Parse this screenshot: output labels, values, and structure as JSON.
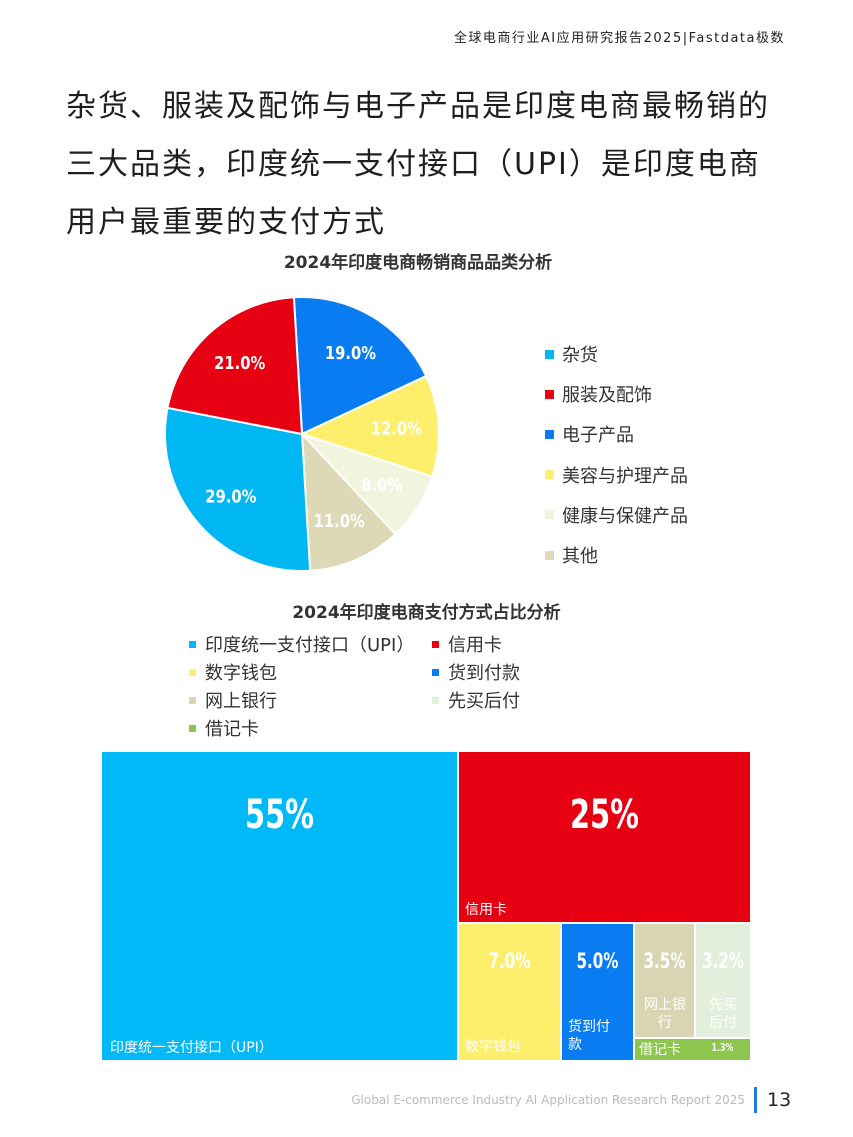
{
  "header": {
    "report_title": "全球电商行业AI应用研究报告2025|Fastdata极数"
  },
  "headline": {
    "lines": [
      "杂货、服装及配饰与电子产品是印度电商最畅销的",
      "三大品类，印度统一支付接口（UPI）是印度电商",
      "用户最重要的支付方式"
    ]
  },
  "chart_data": [
    {
      "type": "pie",
      "title": "2024年印度电商畅销商品品类分析",
      "legend_position": "right",
      "categories": [
        "杂货",
        "服装及配饰",
        "电子产品",
        "美容与护理产品",
        "健康与保健产品",
        "其他"
      ],
      "values": [
        29.0,
        21.0,
        19.0,
        12.0,
        8.0,
        11.0
      ],
      "data_labels": [
        "29.0%",
        "21.0%",
        "19.0%",
        "12.0%",
        "8.0%",
        "11.0%"
      ],
      "colors": [
        "#00b7f4",
        "#e60012",
        "#0a7cf1",
        "#fdee6c",
        "#f1f5dd",
        "#ddd8b5"
      ]
    },
    {
      "type": "treemap",
      "title": "2024年印度电商支付方式占比分析",
      "legend_position": "top",
      "categories": [
        "印度统一支付接口（UPI）",
        "信用卡",
        "数字钱包",
        "货到付款",
        "网上银行",
        "先买后付",
        "借记卡"
      ],
      "values": [
        55,
        25,
        7.0,
        5.0,
        3.5,
        3.2,
        1.3
      ],
      "data_labels": [
        "55%",
        "25%",
        "7.0%",
        "5.0%",
        "3.5%",
        "3.2%",
        "1.3%"
      ],
      "cell_labels": [
        "印度统一支付接口（UPI）",
        "信用卡",
        "数字钱包",
        "货到付\n款",
        "网上银\n行",
        "先买\n后付",
        "借记卡"
      ],
      "colors": [
        "#00b9f6",
        "#e60012",
        "#fdee6c",
        "#0a7cf1",
        "#d9d4b2",
        "#e1efdc",
        "#8cc64e"
      ]
    }
  ],
  "footer": {
    "report_name": "Global E-commerce Industry AI Application Research Report 2025",
    "page_number": "13"
  }
}
